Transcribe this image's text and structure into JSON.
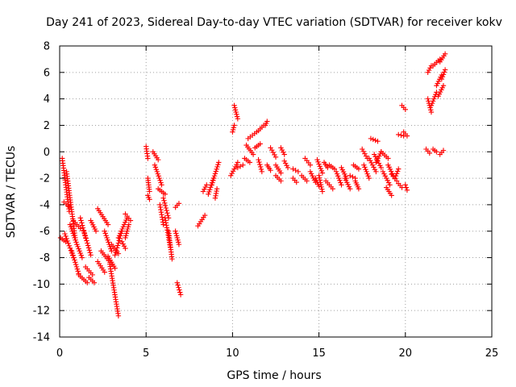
{
  "chart_data": {
    "type": "scatter",
    "title": "Day 241 of 2023, Sidereal Day-to-day VTEC variation (SDTVAR) for receiver kokv",
    "xlabel": "GPS time / hours",
    "ylabel": "SDTVAR / TECUs",
    "xlim": [
      0,
      25
    ],
    "ylim": [
      -14,
      8
    ],
    "xticks": [
      0,
      5,
      10,
      15,
      20,
      25
    ],
    "yticks": [
      -14,
      -12,
      -10,
      -8,
      -6,
      -4,
      -2,
      0,
      2,
      4,
      6,
      8
    ],
    "grid": true,
    "marker": "+",
    "color": "#ff0000",
    "series": [
      {
        "name": "SDTVAR",
        "segments": [
          [
            0.05,
            -6.5,
            0.35,
            -6.8
          ],
          [
            0.15,
            -0.5,
            0.55,
            -4.5
          ],
          [
            0.25,
            -3.8,
            0.6,
            -4.2
          ],
          [
            0.3,
            -6.2,
            0.8,
            -8.0
          ],
          [
            0.4,
            -1.5,
            0.9,
            -6.5
          ],
          [
            0.6,
            -5.5,
            1.0,
            -7.0
          ],
          [
            0.7,
            -7.5,
            1.1,
            -9.2
          ],
          [
            0.8,
            -5.2,
            1.2,
            -5.8
          ],
          [
            1.0,
            -7.0,
            1.3,
            -8.0
          ],
          [
            1.1,
            -9.3,
            1.6,
            -9.9
          ],
          [
            1.2,
            -5.0,
            1.5,
            -6.5
          ],
          [
            1.4,
            -6.0,
            1.8,
            -7.8
          ],
          [
            1.5,
            -8.7,
            1.9,
            -9.3
          ],
          [
            1.7,
            -9.5,
            2.0,
            -9.9
          ],
          [
            1.8,
            -5.2,
            2.1,
            -6.0
          ],
          [
            2.2,
            -4.3,
            2.8,
            -5.5
          ],
          [
            2.2,
            -8.3,
            2.6,
            -9.1
          ],
          [
            2.4,
            -7.5,
            3.0,
            -8.5
          ],
          [
            2.6,
            -6.0,
            3.0,
            -7.5
          ],
          [
            2.8,
            -7.9,
            3.2,
            -8.8
          ],
          [
            2.9,
            -8.5,
            3.4,
            -12.4
          ],
          [
            3.0,
            -7.0,
            3.4,
            -7.7
          ],
          [
            3.2,
            -7.8,
            3.6,
            -6.0
          ],
          [
            3.4,
            -6.5,
            3.9,
            -5.0
          ],
          [
            3.6,
            -6.8,
            3.8,
            -7.3
          ],
          [
            3.8,
            -4.7,
            4.1,
            -5.2
          ],
          [
            3.8,
            -6.5,
            4.0,
            -5.5
          ],
          [
            5.0,
            0.4,
            5.1,
            -0.5
          ],
          [
            5.1,
            -2.0,
            5.2,
            -3.0
          ],
          [
            5.1,
            -3.3,
            5.2,
            -3.6
          ],
          [
            5.4,
            0.0,
            5.7,
            -0.6
          ],
          [
            5.5,
            -1.0,
            5.9,
            -2.5
          ],
          [
            5.7,
            -2.8,
            6.1,
            -3.2
          ],
          [
            5.8,
            -4.0,
            6.0,
            -5.5
          ],
          [
            6.0,
            -3.5,
            6.3,
            -5.0
          ],
          [
            6.1,
            -5.0,
            6.4,
            -7.2
          ],
          [
            6.3,
            -6.0,
            6.5,
            -8.1
          ],
          [
            6.7,
            -4.2,
            6.9,
            -3.9
          ],
          [
            6.7,
            -6.0,
            6.9,
            -7.0
          ],
          [
            6.8,
            -9.9,
            7.0,
            -10.8
          ],
          [
            8.0,
            -5.6,
            8.4,
            -4.8
          ],
          [
            8.3,
            -3.0,
            8.5,
            -2.5
          ],
          [
            8.6,
            -3.2,
            8.9,
            -2.0
          ],
          [
            8.8,
            -2.5,
            9.2,
            -0.8
          ],
          [
            9.0,
            -3.5,
            9.1,
            -2.8
          ],
          [
            9.9,
            -1.8,
            10.3,
            -0.8
          ],
          [
            10.0,
            1.5,
            10.1,
            2.0
          ],
          [
            10.1,
            3.5,
            10.3,
            2.5
          ],
          [
            10.3,
            -1.2,
            10.6,
            -1.0
          ],
          [
            10.7,
            -0.5,
            11.0,
            -0.8
          ],
          [
            10.8,
            0.5,
            11.2,
            -0.2
          ],
          [
            10.9,
            1.0,
            11.4,
            1.5
          ],
          [
            11.3,
            0.3,
            11.6,
            0.6
          ],
          [
            11.5,
            1.6,
            11.8,
            2.0
          ],
          [
            11.5,
            -0.6,
            11.7,
            -1.5
          ],
          [
            11.9,
            2.0,
            12.0,
            2.3
          ],
          [
            12.0,
            -1.0,
            12.2,
            -1.4
          ],
          [
            12.2,
            0.3,
            12.5,
            -0.4
          ],
          [
            12.5,
            -1.0,
            12.8,
            -1.6
          ],
          [
            12.5,
            -1.8,
            12.8,
            -2.2
          ],
          [
            12.8,
            0.3,
            13.0,
            -0.2
          ],
          [
            13.0,
            -0.7,
            13.2,
            -1.2
          ],
          [
            13.5,
            -1.3,
            13.8,
            -1.5
          ],
          [
            13.5,
            -2.0,
            13.7,
            -2.3
          ],
          [
            14.0,
            -1.8,
            14.3,
            -2.2
          ],
          [
            14.2,
            -0.5,
            14.5,
            -1.0
          ],
          [
            14.5,
            -1.5,
            14.8,
            -2.3
          ],
          [
            14.8,
            -2.0,
            15.0,
            -2.6
          ],
          [
            14.9,
            -0.6,
            15.2,
            -1.6
          ],
          [
            15.0,
            -1.8,
            15.2,
            -3.0
          ],
          [
            15.3,
            -0.8,
            15.5,
            -1.2
          ],
          [
            15.4,
            -2.2,
            15.8,
            -2.8
          ],
          [
            15.6,
            -1.0,
            15.9,
            -1.3
          ],
          [
            16.0,
            -1.5,
            16.3,
            -2.5
          ],
          [
            16.3,
            -1.2,
            16.6,
            -2.0
          ],
          [
            16.5,
            -2.0,
            16.8,
            -2.8
          ],
          [
            16.8,
            -1.8,
            17.1,
            -2.0
          ],
          [
            17.0,
            -1.0,
            17.3,
            -1.3
          ],
          [
            17.1,
            -2.2,
            17.3,
            -2.8
          ],
          [
            17.5,
            0.2,
            17.8,
            -0.5
          ],
          [
            17.6,
            -1.0,
            17.9,
            -2.0
          ],
          [
            17.9,
            -0.5,
            18.3,
            -1.5
          ],
          [
            18.0,
            1.0,
            18.4,
            0.8
          ],
          [
            18.2,
            -0.2,
            18.6,
            -1.2
          ],
          [
            18.3,
            -0.8,
            18.6,
            0.0
          ],
          [
            18.6,
            0.0,
            19.0,
            -0.5
          ],
          [
            18.7,
            -1.5,
            19.1,
            -2.5
          ],
          [
            18.9,
            -2.7,
            19.2,
            -3.3
          ],
          [
            19.0,
            -1.0,
            19.3,
            -1.8
          ],
          [
            19.2,
            -1.7,
            19.5,
            -2.2
          ],
          [
            19.4,
            -2.0,
            19.6,
            -1.3
          ],
          [
            19.6,
            1.3,
            19.9,
            1.2
          ],
          [
            19.6,
            -2.4,
            19.8,
            -2.7
          ],
          [
            19.8,
            3.5,
            20.0,
            3.2
          ],
          [
            19.9,
            1.5,
            20.1,
            1.2
          ],
          [
            20.0,
            -2.5,
            20.1,
            -2.9
          ],
          [
            21.2,
            0.2,
            21.4,
            -0.1
          ],
          [
            21.3,
            4.0,
            21.5,
            3.0
          ],
          [
            21.3,
            6.0,
            21.5,
            6.5
          ],
          [
            21.5,
            3.5,
            21.8,
            4.5
          ],
          [
            21.6,
            0.2,
            21.8,
            0.0
          ],
          [
            21.6,
            6.5,
            22.0,
            7.0
          ],
          [
            21.8,
            5.0,
            22.1,
            5.8
          ],
          [
            21.9,
            4.2,
            22.2,
            5.0
          ],
          [
            22.0,
            -0.2,
            22.2,
            0.1
          ],
          [
            22.0,
            6.8,
            22.3,
            7.4
          ],
          [
            22.1,
            5.5,
            22.3,
            6.2
          ]
        ]
      }
    ]
  }
}
